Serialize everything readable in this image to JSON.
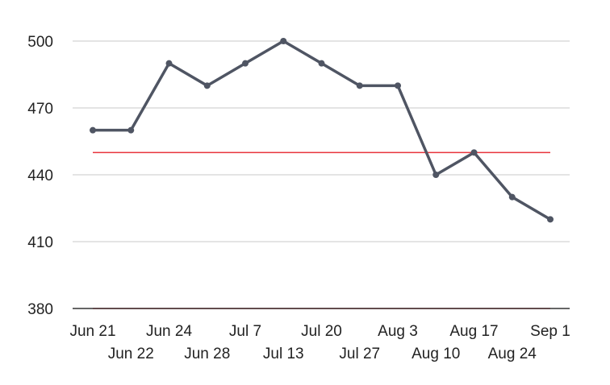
{
  "chart_data": {
    "type": "line",
    "title": "",
    "xlabel": "",
    "ylabel": "",
    "categories": [
      "Jun 21",
      "Jun 22",
      "Jun 24",
      "Jun 28",
      "Jul 7",
      "Jul 13",
      "Jul 20",
      "Jul 27",
      "Aug 3",
      "Aug 10",
      "Aug 17",
      "Aug 24",
      "Sep 1"
    ],
    "series": [
      {
        "values": [
          460,
          460,
          490,
          480,
          490,
          500,
          490,
          480,
          480,
          440,
          450,
          430,
          420
        ]
      }
    ],
    "reference_lines": [
      450,
      380
    ],
    "ylim": [
      380,
      500
    ],
    "yticks": [
      380,
      410,
      440,
      470,
      500
    ],
    "grid": true,
    "legend": "none",
    "colors": {
      "line": "#4f5563",
      "reference": "#e8343c",
      "grid": "#c8c8c8",
      "axis": "#333333"
    }
  }
}
